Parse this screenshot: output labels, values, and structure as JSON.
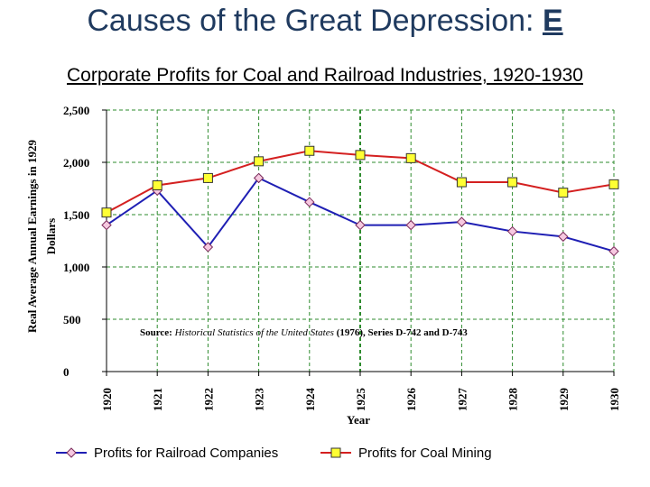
{
  "page": {
    "title_text": "Causes of the Great Depression: ",
    "title_letter": "E",
    "subtitle": "Corporate Profits for Coal and Railroad Industries, 1920-1930"
  },
  "chart_data": {
    "type": "line",
    "x": [
      1920,
      1921,
      1922,
      1923,
      1924,
      1925,
      1926,
      1927,
      1928,
      1929,
      1930
    ],
    "xtick_labels": [
      "1920",
      "1921",
      "1922",
      "1923",
      "1924",
      "1925",
      "1926",
      "1927",
      "1928",
      "1929",
      "1930"
    ],
    "ylim": [
      0,
      2500
    ],
    "yticks": [
      0,
      500,
      1000,
      1500,
      2000,
      2500
    ],
    "ytick_labels": [
      "0",
      "500",
      "1,000",
      "1,500",
      "2,000",
      "2,500"
    ],
    "xlabel": "Year",
    "ylabel_line1": "Real Average Annual Earnings in 1929",
    "ylabel_line2": "Dollars",
    "grid": true,
    "legend_position": "bottom",
    "source_bold": "Source: ",
    "source_italic": "Historical Statistics of the United States",
    "source_rest": " (1976), Series D-742 and D-743",
    "series": [
      {
        "name": "Profits for Railroad Companies",
        "color": "#1f1fb4",
        "marker": "diamond",
        "values": [
          1400,
          1730,
          1190,
          1850,
          1620,
          1400,
          1400,
          1430,
          1340,
          1290,
          1150
        ]
      },
      {
        "name": "Profits for Coal Mining",
        "color": "#d42020",
        "marker": "square",
        "values": [
          1520,
          1780,
          1850,
          2010,
          2110,
          2070,
          2040,
          1810,
          1810,
          1710,
          1790
        ]
      }
    ]
  }
}
